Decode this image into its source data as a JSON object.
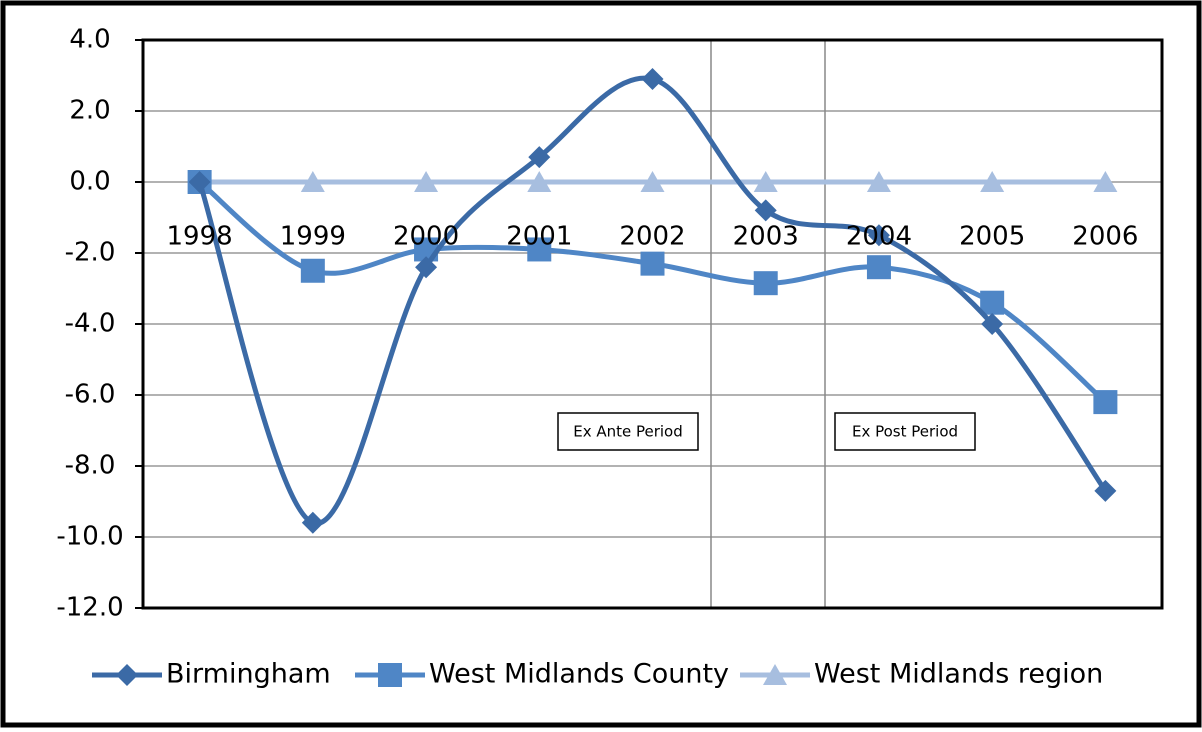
{
  "chart_data": {
    "type": "line",
    "smooth": true,
    "categories": [
      "1998",
      "1999",
      "2000",
      "2001",
      "2002",
      "2003",
      "2004",
      "2005",
      "2006"
    ],
    "series": [
      {
        "name": "Birmingham",
        "color": "#3b6aa6",
        "marker": "diamond",
        "values": [
          0,
          -9.6,
          -2.4,
          0.7,
          2.9,
          -0.8,
          -1.5,
          -4.0,
          -8.7
        ]
      },
      {
        "name": "West Midlands County",
        "color": "#4f86c6",
        "marker": "square",
        "values": [
          0,
          -2.5,
          -1.9,
          -1.9,
          -2.3,
          -2.85,
          -2.4,
          -3.4,
          -6.2
        ]
      },
      {
        "name": "West Midlands region",
        "color": "#a7bedf",
        "marker": "triangle",
        "values": [
          0,
          0,
          0,
          0,
          0,
          0,
          0,
          0,
          0
        ]
      }
    ],
    "ylim": [
      -12,
      4
    ],
    "yticks": [
      {
        "value": -12,
        "label": "-12.0"
      },
      {
        "value": -10,
        "label": "-10.0"
      },
      {
        "value": -8,
        "label": "-8.0"
      },
      {
        "value": -6,
        "label": "-6.0"
      },
      {
        "value": -4,
        "label": "-4.0"
      },
      {
        "value": -2,
        "label": "-2.0"
      },
      {
        "value": 0,
        "label": "0.0"
      },
      {
        "value": 2,
        "label": "2.0"
      },
      {
        "value": 4,
        "label": "4.0"
      }
    ],
    "grid": true,
    "legend": "bottom",
    "annotations": [
      "Ex Ante Period",
      "Ex Post Period"
    ]
  }
}
